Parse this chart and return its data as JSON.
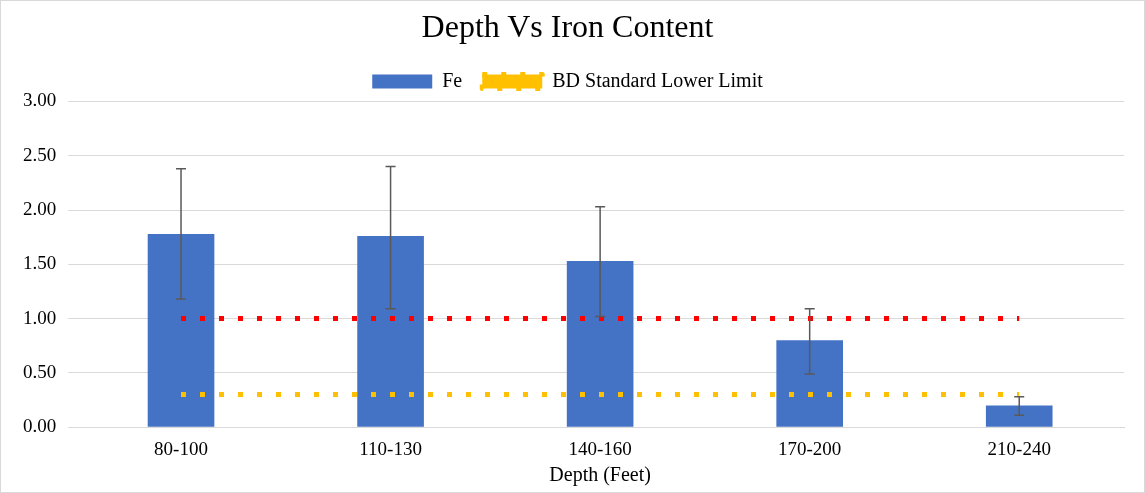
{
  "chart_data": {
    "type": "bar",
    "title": "Depth Vs Iron Content",
    "xlabel": "Depth (Feet)",
    "categories": [
      "80-100",
      "110-130",
      "140-160",
      "170-200",
      "210-240"
    ],
    "series": [
      {
        "name": "Fe",
        "color": "#4472c4",
        "values": [
          1.78,
          1.76,
          1.53,
          0.8,
          0.2
        ],
        "errors": [
          [
            1.18,
            2.38
          ],
          [
            1.09,
            2.4
          ],
          [
            1.02,
            2.03
          ],
          [
            0.49,
            1.09
          ],
          [
            0.11,
            0.28
          ]
        ]
      },
      {
        "type": "line",
        "color": "#ff0000",
        "values": [
          1,
          1,
          1,
          1,
          1
        ],
        "line_style": "dotted"
      },
      {
        "name": "BD Standard Lower Limit",
        "type": "line",
        "color": "#ffc000",
        "values": [
          0.3,
          0.3,
          0.3,
          0.3,
          0.3
        ],
        "line_style": "dotted"
      }
    ],
    "ylim": [
      0,
      3
    ],
    "yticks": [
      {
        "value": 0,
        "label": "0.00"
      },
      {
        "value": 0.5,
        "label": "0.50"
      },
      {
        "value": 1,
        "label": "1.00"
      },
      {
        "value": 1.5,
        "label": "1.50"
      },
      {
        "value": 2,
        "label": "2.00"
      },
      {
        "value": 2.5,
        "label": "2.50"
      },
      {
        "value": 3,
        "label": "3.00"
      }
    ],
    "grid": "y",
    "legend": "top",
    "marker": "none"
  }
}
